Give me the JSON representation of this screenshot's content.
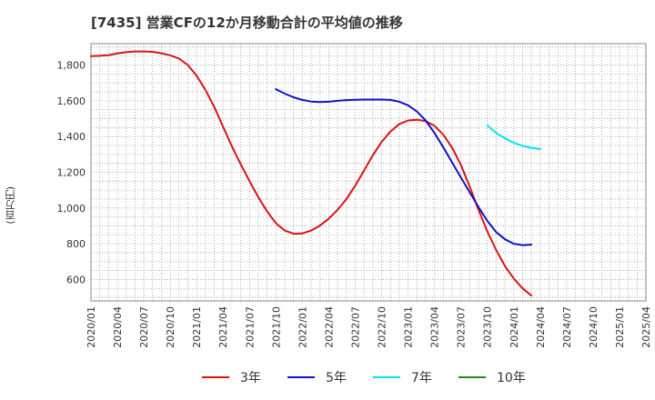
{
  "chart_data": {
    "type": "line",
    "title": "[7435]  営業CFの12か月移動合計の平均値の推移",
    "ylabel": "(百万円)",
    "xlabel": "",
    "ylim": [
      480,
      1920
    ],
    "yticks": [
      600,
      800,
      1000,
      1200,
      1400,
      1600,
      1800
    ],
    "yticklabels": [
      "600",
      "800",
      "1,000",
      "1,200",
      "1,400",
      "1,600",
      "1,800"
    ],
    "xticks": [
      "2020/01",
      "2020/04",
      "2020/07",
      "2020/10",
      "2021/01",
      "2021/04",
      "2021/07",
      "2021/10",
      "2022/01",
      "2022/04",
      "2022/07",
      "2022/10",
      "2023/01",
      "2023/04",
      "2023/07",
      "2023/10",
      "2024/01",
      "2024/04",
      "2024/07",
      "2024/10",
      "2025/01",
      "2025/04"
    ],
    "grid": true,
    "legend_position": "bottom",
    "series": [
      {
        "name": "3年",
        "color": "#dd1111",
        "points": [
          [
            "2020/01",
            1850
          ],
          [
            "2020/02",
            1852
          ],
          [
            "2020/03",
            1856
          ],
          [
            "2020/04",
            1865
          ],
          [
            "2020/05",
            1872
          ],
          [
            "2020/06",
            1876
          ],
          [
            "2020/07",
            1876
          ],
          [
            "2020/08",
            1874
          ],
          [
            "2020/09",
            1866
          ],
          [
            "2020/10",
            1855
          ],
          [
            "2020/11",
            1836
          ],
          [
            "2020/12",
            1800
          ],
          [
            "2021/01",
            1740
          ],
          [
            "2021/02",
            1660
          ],
          [
            "2021/03",
            1565
          ],
          [
            "2021/04",
            1455
          ],
          [
            "2021/05",
            1345
          ],
          [
            "2021/06",
            1245
          ],
          [
            "2021/07",
            1150
          ],
          [
            "2021/08",
            1060
          ],
          [
            "2021/09",
            980
          ],
          [
            "2021/10",
            915
          ],
          [
            "2021/11",
            874
          ],
          [
            "2021/12",
            856
          ],
          [
            "2022/01",
            858
          ],
          [
            "2022/02",
            874
          ],
          [
            "2022/03",
            902
          ],
          [
            "2022/04",
            940
          ],
          [
            "2022/05",
            990
          ],
          [
            "2022/06",
            1050
          ],
          [
            "2022/07",
            1125
          ],
          [
            "2022/08",
            1210
          ],
          [
            "2022/09",
            1295
          ],
          [
            "2022/10",
            1370
          ],
          [
            "2022/11",
            1428
          ],
          [
            "2022/12",
            1470
          ],
          [
            "2023/01",
            1490
          ],
          [
            "2023/02",
            1494
          ],
          [
            "2023/03",
            1486
          ],
          [
            "2023/04",
            1460
          ],
          [
            "2023/05",
            1410
          ],
          [
            "2023/06",
            1338
          ],
          [
            "2023/07",
            1240
          ],
          [
            "2023/08",
            1120
          ],
          [
            "2023/09",
            990
          ],
          [
            "2023/10",
            868
          ],
          [
            "2023/11",
            765
          ],
          [
            "2023/12",
            675
          ],
          [
            "2024/01",
            605
          ],
          [
            "2024/02",
            550
          ],
          [
            "2024/03",
            510
          ]
        ]
      },
      {
        "name": "5年",
        "color": "#1111cc",
        "points": [
          [
            "2021/10",
            1665
          ],
          [
            "2021/11",
            1640
          ],
          [
            "2021/12",
            1620
          ],
          [
            "2022/01",
            1605
          ],
          [
            "2022/02",
            1596
          ],
          [
            "2022/03",
            1593
          ],
          [
            "2022/04",
            1595
          ],
          [
            "2022/05",
            1600
          ],
          [
            "2022/06",
            1604
          ],
          [
            "2022/07",
            1606
          ],
          [
            "2022/08",
            1607
          ],
          [
            "2022/09",
            1607
          ],
          [
            "2022/10",
            1607
          ],
          [
            "2022/11",
            1605
          ],
          [
            "2022/12",
            1595
          ],
          [
            "2023/01",
            1575
          ],
          [
            "2023/02",
            1540
          ],
          [
            "2023/03",
            1490
          ],
          [
            "2023/04",
            1420
          ],
          [
            "2023/05",
            1340
          ],
          [
            "2023/06",
            1255
          ],
          [
            "2023/07",
            1170
          ],
          [
            "2023/08",
            1088
          ],
          [
            "2023/09",
            1005
          ],
          [
            "2023/10",
            928
          ],
          [
            "2023/11",
            865
          ],
          [
            "2023/12",
            825
          ],
          [
            "2024/01",
            800
          ],
          [
            "2024/02",
            792
          ],
          [
            "2024/03",
            795
          ]
        ]
      },
      {
        "name": "7年",
        "color": "#00e5ee",
        "points": [
          [
            "2023/10",
            1462
          ],
          [
            "2023/11",
            1420
          ],
          [
            "2023/12",
            1390
          ],
          [
            "2024/01",
            1365
          ],
          [
            "2024/02",
            1348
          ],
          [
            "2024/03",
            1337
          ],
          [
            "2024/04",
            1330
          ]
        ]
      },
      {
        "name": "10年",
        "color": "#228822",
        "points": []
      }
    ]
  }
}
